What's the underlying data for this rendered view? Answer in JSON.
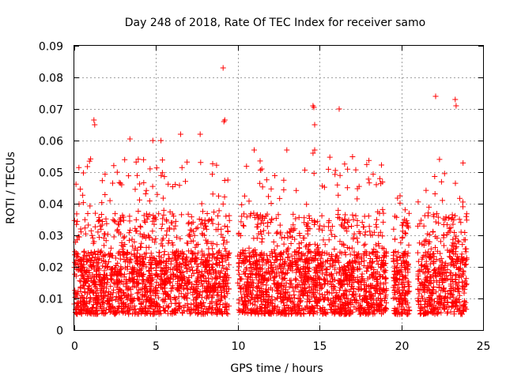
{
  "chart_data": {
    "type": "scatter",
    "title": "Day 248 of 2018, Rate Of TEC Index for receiver samo",
    "xlabel": "GPS time / hours",
    "ylabel": "ROTI / TECUs",
    "xlim": [
      0,
      25
    ],
    "ylim": [
      0,
      0.09
    ],
    "xticks": [
      0,
      5,
      10,
      15,
      20,
      25
    ],
    "xtick_labels": [
      "0",
      "5",
      "10",
      "15",
      "20",
      "25"
    ],
    "yticks": [
      0,
      0.01,
      0.02,
      0.03,
      0.04,
      0.05,
      0.06,
      0.07,
      0.08,
      0.09
    ],
    "ytick_labels": [
      "0",
      "0.01",
      "0.02",
      "0.03",
      "0.04",
      "0.05",
      "0.06",
      "0.07",
      "0.08",
      "0.09"
    ],
    "grid": true,
    "marker": "+",
    "color": "#ff0000",
    "data_gaps_hours": [
      [
        9.5,
        10.0
      ],
      [
        19.1,
        19.5
      ],
      [
        20.5,
        21.0
      ]
    ],
    "series": [
      {
        "name": "ROTI",
        "x": [
          9.1,
          9.15,
          9.2,
          14.6,
          14.65,
          14.7,
          16.2,
          22.1,
          23.3,
          23.35,
          1.2,
          1.25,
          3.4,
          4.8,
          5.3,
          6.5,
          7.7,
          14.7,
          14.6,
          11.0,
          13.0
        ],
        "y": [
          0.083,
          0.066,
          0.0665,
          0.071,
          0.0705,
          0.065,
          0.07,
          0.074,
          0.073,
          0.071,
          0.0665,
          0.065,
          0.0605,
          0.06,
          0.06,
          0.062,
          0.062,
          0.057,
          0.056,
          0.057,
          0.057
        ]
      }
    ]
  }
}
